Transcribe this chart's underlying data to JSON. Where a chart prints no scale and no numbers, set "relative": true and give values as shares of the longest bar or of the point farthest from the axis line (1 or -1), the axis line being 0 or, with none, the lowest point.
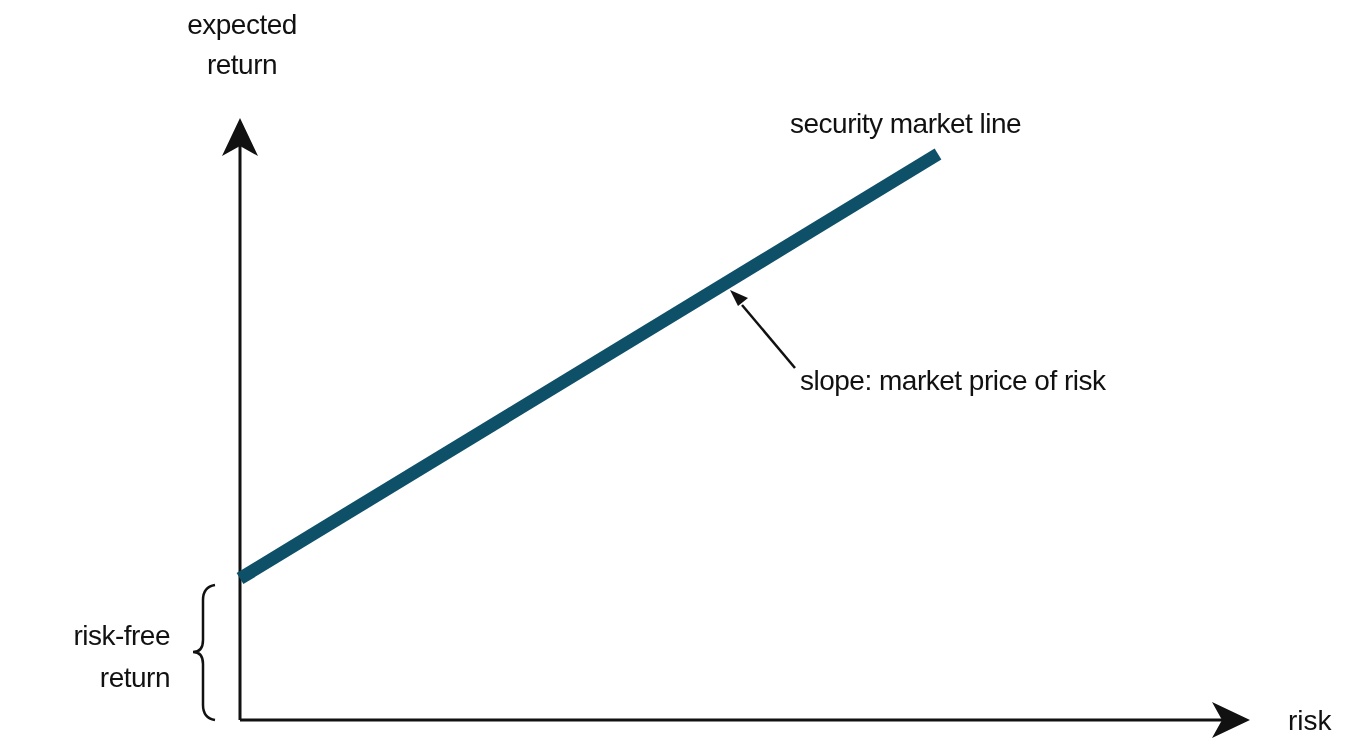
{
  "chart_data": {
    "type": "line",
    "relative": true,
    "xlabel": "risk",
    "ylabel": "expected return",
    "categories": [
      null,
      null
    ],
    "series": [
      {
        "color": "#0f5069",
        "values": [
          0.25,
          1
        ]
      }
    ],
    "annotations": [
      "security market line",
      "slope: market price of risk",
      "risk-free return"
    ],
    "marker": "none",
    "line_style": "solid"
  }
}
